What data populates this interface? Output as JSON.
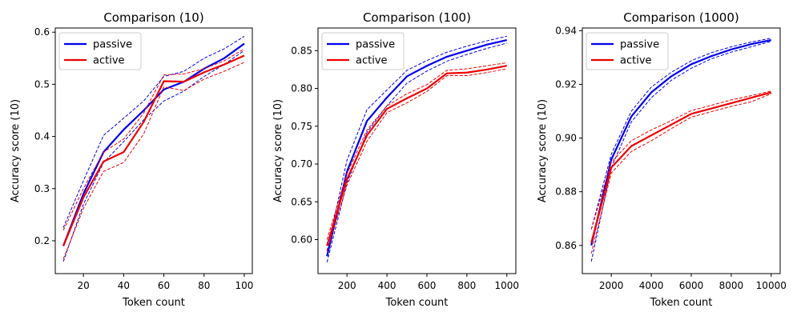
{
  "chart_data": [
    {
      "type": "line",
      "title": "Comparison (10)",
      "xlabel": "Token count",
      "ylabel": "Accuracy score (10)",
      "xlim": [
        6,
        104
      ],
      "ylim": [
        0.137,
        0.608
      ],
      "xticks": [
        20,
        40,
        60,
        80,
        100
      ],
      "xtick_labels": [
        "20",
        "40",
        "60",
        "80",
        "100"
      ],
      "yticks": [
        0.2,
        0.3,
        0.4,
        0.5,
        0.6
      ],
      "ytick_labels": [
        "0.2",
        "0.3",
        "0.4",
        "0.5",
        "0.6"
      ],
      "legend_position": "top-left",
      "x": [
        10,
        20,
        30,
        40,
        50,
        60,
        70,
        80,
        90,
        100
      ],
      "series": [
        {
          "name": "passive",
          "color": "#0000ee",
          "values": [
            0.19,
            0.29,
            0.37,
            0.413,
            0.45,
            0.49,
            0.505,
            0.53,
            0.55,
            0.578
          ],
          "upper": [
            0.225,
            0.315,
            0.402,
            0.435,
            0.468,
            0.515,
            0.525,
            0.55,
            0.568,
            0.592
          ],
          "lower": [
            0.16,
            0.27,
            0.35,
            0.39,
            0.432,
            0.468,
            0.487,
            0.515,
            0.538,
            0.565
          ]
        },
        {
          "name": "active",
          "color": "#ee0000",
          "values": [
            0.19,
            0.283,
            0.352,
            0.37,
            0.428,
            0.506,
            0.505,
            0.523,
            0.538,
            0.555
          ],
          "upper": [
            0.22,
            0.3,
            0.37,
            0.395,
            0.445,
            0.518,
            0.52,
            0.53,
            0.545,
            0.568
          ],
          "lower": [
            0.165,
            0.262,
            0.333,
            0.35,
            0.405,
            0.495,
            0.488,
            0.51,
            0.525,
            0.542
          ]
        }
      ]
    },
    {
      "type": "line",
      "title": "Comparison (100)",
      "xlabel": "Token count",
      "ylabel": "Accuracy score (10)",
      "xlim": [
        55,
        1045
      ],
      "ylim": [
        0.555,
        0.88
      ],
      "xticks": [
        200,
        400,
        600,
        800,
        1000
      ],
      "xtick_labels": [
        "200",
        "400",
        "600",
        "800",
        "1000"
      ],
      "yticks": [
        0.6,
        0.65,
        0.7,
        0.75,
        0.8,
        0.85
      ],
      "ytick_labels": [
        "0.60",
        "0.65",
        "0.70",
        "0.75",
        "0.80",
        "0.85"
      ],
      "legend_position": "top-left",
      "x": [
        100,
        200,
        300,
        400,
        500,
        600,
        700,
        800,
        900,
        1000
      ],
      "series": [
        {
          "name": "passive",
          "color": "#0000ee",
          "values": [
            0.578,
            0.69,
            0.757,
            0.788,
            0.816,
            0.83,
            0.842,
            0.85,
            0.858,
            0.864
          ],
          "upper": [
            0.585,
            0.705,
            0.772,
            0.798,
            0.824,
            0.837,
            0.848,
            0.856,
            0.863,
            0.869
          ],
          "lower": [
            0.57,
            0.675,
            0.742,
            0.777,
            0.807,
            0.823,
            0.836,
            0.845,
            0.853,
            0.86
          ]
        },
        {
          "name": "active",
          "color": "#ee0000",
          "values": [
            0.592,
            0.68,
            0.738,
            0.773,
            0.787,
            0.8,
            0.82,
            0.821,
            0.825,
            0.83
          ],
          "upper": [
            0.6,
            0.687,
            0.745,
            0.777,
            0.793,
            0.805,
            0.824,
            0.826,
            0.83,
            0.834
          ],
          "lower": [
            0.585,
            0.672,
            0.73,
            0.768,
            0.781,
            0.796,
            0.817,
            0.817,
            0.821,
            0.826
          ]
        }
      ]
    },
    {
      "type": "line",
      "title": "Comparison (1000)",
      "xlabel": "Token count",
      "ylabel": "Accuracy score (10)",
      "xlim": [
        550,
        10450
      ],
      "ylim": [
        0.8495,
        0.941
      ],
      "xticks": [
        2000,
        4000,
        6000,
        8000,
        10000
      ],
      "xtick_labels": [
        "2000",
        "4000",
        "6000",
        "8000",
        "10000"
      ],
      "yticks": [
        0.86,
        0.88,
        0.9,
        0.92,
        0.94
      ],
      "ytick_labels": [
        "0.86",
        "0.88",
        "0.90",
        "0.92",
        "0.94"
      ],
      "legend_position": "top-left",
      "x": [
        1000,
        2000,
        3000,
        4000,
        5000,
        6000,
        7000,
        8000,
        9000,
        10000
      ],
      "series": [
        {
          "name": "passive",
          "color": "#0000ee",
          "values": [
            0.86,
            0.892,
            0.908,
            0.917,
            0.923,
            0.9275,
            0.9305,
            0.933,
            0.935,
            0.9365
          ],
          "upper": [
            0.866,
            0.894,
            0.91,
            0.919,
            0.9245,
            0.9288,
            0.9318,
            0.934,
            0.9358,
            0.9372
          ],
          "lower": [
            0.854,
            0.889,
            0.906,
            0.915,
            0.9215,
            0.926,
            0.9295,
            0.932,
            0.934,
            0.936
          ]
        },
        {
          "name": "active",
          "color": "#ee0000",
          "values": [
            0.861,
            0.889,
            0.897,
            0.901,
            0.905,
            0.909,
            0.911,
            0.913,
            0.915,
            0.917
          ],
          "upper": [
            0.866,
            0.891,
            0.899,
            0.903,
            0.9065,
            0.9102,
            0.9122,
            0.9142,
            0.9158,
            0.9175
          ],
          "lower": [
            0.857,
            0.887,
            0.895,
            0.899,
            0.9035,
            0.9078,
            0.9098,
            0.9118,
            0.9135,
            0.9165
          ]
        }
      ]
    }
  ]
}
